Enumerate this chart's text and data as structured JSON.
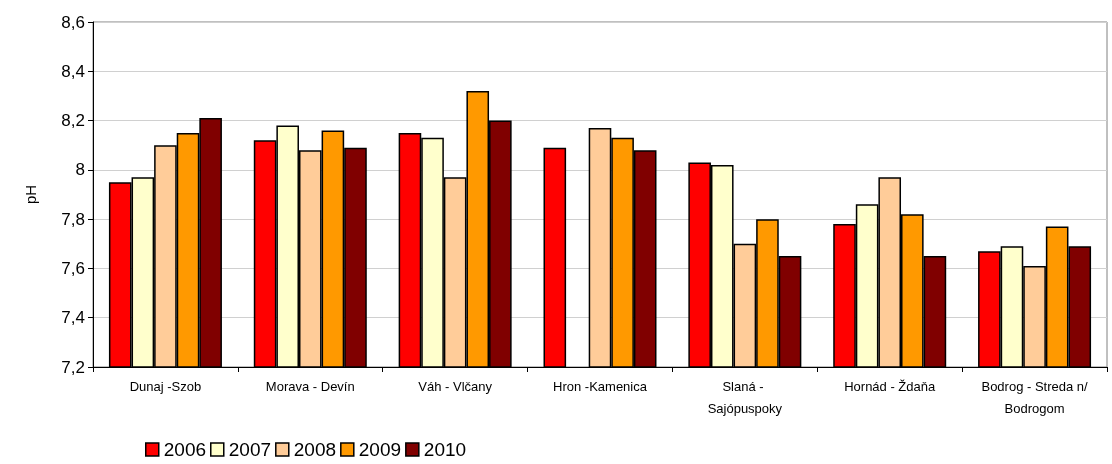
{
  "chart_data": {
    "type": "bar",
    "ylabel": "pH",
    "categories": [
      "Dunaj -Szob",
      "Morava - Devín",
      "Váh - Vlčany",
      "Hron -Kamenica",
      "Slaná - Sajópuspoky",
      "Hornád - Ždaňa",
      "Bodrog - Streda n/Bodrogom"
    ],
    "series": [
      {
        "name": "2006",
        "color": "#ff0000",
        "values": [
          7.95,
          8.12,
          8.15,
          8.09,
          8.03,
          7.78,
          7.67
        ]
      },
      {
        "name": "2007",
        "color": "#ffffcc",
        "values": [
          7.97,
          8.18,
          8.13,
          null,
          8.02,
          7.86,
          7.69
        ]
      },
      {
        "name": "2008",
        "color": "#ffcc99",
        "values": [
          8.1,
          8.08,
          7.97,
          8.17,
          7.7,
          7.97,
          7.61
        ]
      },
      {
        "name": "2009",
        "color": "#ff9900",
        "values": [
          8.15,
          8.16,
          8.32,
          8.13,
          7.8,
          7.82,
          7.77
        ]
      },
      {
        "name": "2010",
        "color": "#800000",
        "values": [
          8.21,
          8.09,
          8.2,
          8.08,
          7.65,
          7.65,
          7.69
        ]
      }
    ],
    "ylim": [
      7.2,
      8.6
    ],
    "yticks": [
      {
        "value": 7.2,
        "label": "7,2"
      },
      {
        "value": 7.4,
        "label": "7,4"
      },
      {
        "value": 7.6,
        "label": "7,6"
      },
      {
        "value": 7.8,
        "label": "7,8"
      },
      8,
      {
        "value": 8.2,
        "label": "8,2"
      },
      {
        "value": 8.4,
        "label": "8,4"
      },
      {
        "value": 8.6,
        "label": "8,6"
      }
    ],
    "grid": "y",
    "legend": "bottom left"
  }
}
